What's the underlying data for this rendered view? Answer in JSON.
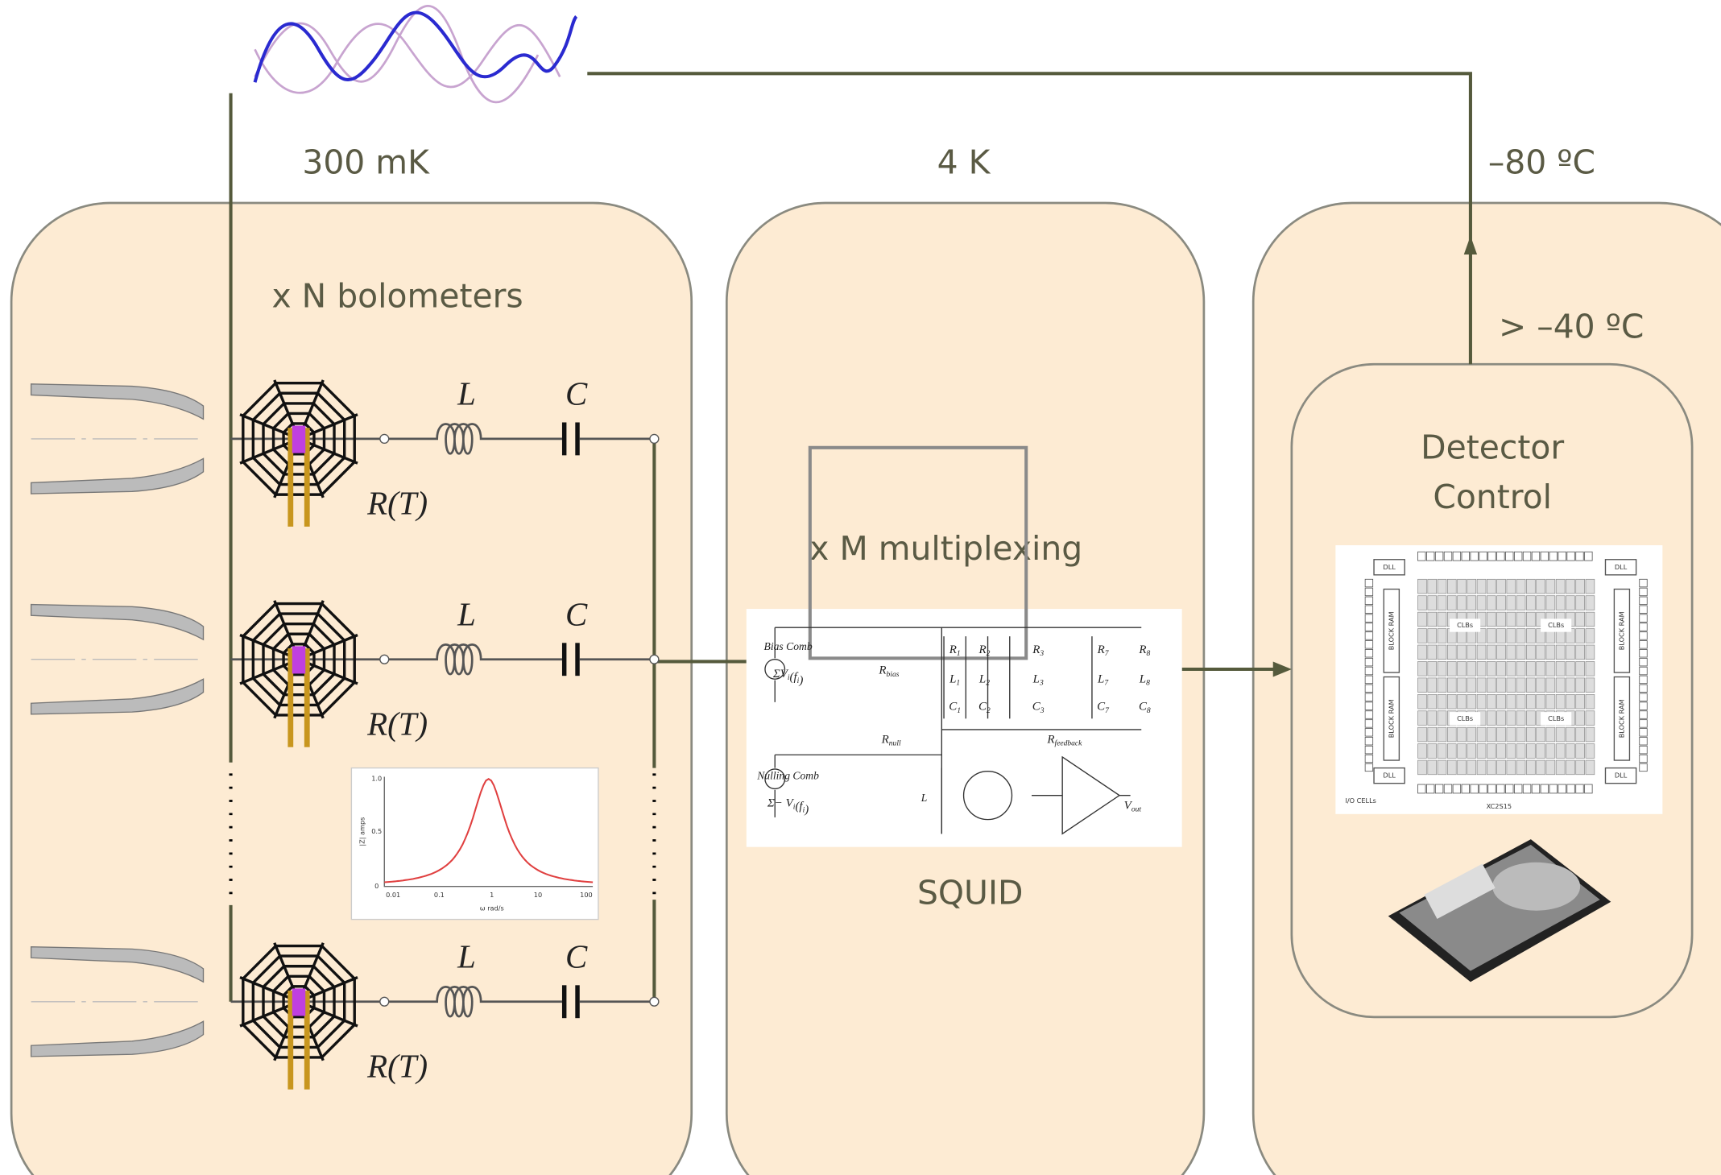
{
  "temperatures": {
    "stage_300mk": "300 mK",
    "stage_4k": "4 K",
    "stage_warm": "–80 ºC",
    "stage_electronics": "> –40 ºC"
  },
  "panels": {
    "bolometers": "x N bolometers",
    "multiplexing": "x M multiplexing",
    "squid": "SQUID",
    "detector_control": [
      "Detector",
      "Control"
    ]
  },
  "channels": [
    {
      "inductor": "L",
      "capacitor": "C",
      "resistor": "R(T)"
    },
    {
      "inductor": "L",
      "capacitor": "C",
      "resistor": "R(T)"
    },
    {
      "inductor": "L",
      "capacitor": "C",
      "resistor": "R(T)"
    }
  ],
  "squid_circuit": {
    "bias_comb": "Bias Comb",
    "bias_source": {
      "symbol": "ΣV",
      "sub": "i",
      "rest": "(f",
      "sub2": "i",
      "end": ")"
    },
    "r_bias": {
      "symbol": "R",
      "sub": "bias"
    },
    "resistors": [
      {
        "symbol": "R",
        "sub": "1"
      },
      {
        "symbol": "R",
        "sub": "2"
      },
      {
        "symbol": "R",
        "sub": "3"
      },
      {
        "symbol": "R",
        "sub": "7"
      },
      {
        "symbol": "R",
        "sub": "8"
      }
    ],
    "inductors": [
      {
        "symbol": "L",
        "sub": "1"
      },
      {
        "symbol": "L",
        "sub": "2"
      },
      {
        "symbol": "L",
        "sub": "3"
      },
      {
        "symbol": "L",
        "sub": "7"
      },
      {
        "symbol": "L",
        "sub": "8"
      }
    ],
    "capacitors": [
      {
        "symbol": "C",
        "sub": "1"
      },
      {
        "symbol": "C",
        "sub": "2"
      },
      {
        "symbol": "C",
        "sub": "3"
      },
      {
        "symbol": "C",
        "sub": "7"
      },
      {
        "symbol": "C",
        "sub": "8"
      }
    ],
    "r_null": {
      "symbol": "R",
      "sub": "null"
    },
    "r_feedback": {
      "symbol": "R",
      "sub": "feedback"
    },
    "nulling_comb": "Nulling Comb",
    "nulling_source": {
      "symbol": "Σ− V",
      "sub": "i",
      "rest": "(f",
      "sub2": "i",
      "end": ")"
    },
    "squid_inductor": "L",
    "v_out": {
      "symbol": "V",
      "sub": "out"
    }
  },
  "response_plot": {
    "ylabel": "|Z| amps",
    "xlabel": "ω rad/s",
    "yticks": [
      "0",
      "0.5",
      "1.0"
    ],
    "xticks": [
      "0.01",
      "0.1",
      "1",
      "10",
      "100"
    ]
  },
  "fpga": {
    "dll": "DLL",
    "block_ram": "BLOCK RAM",
    "clbs": "CLBs",
    "io_cells": "I/O CELLs",
    "part": "XC2S15"
  }
}
